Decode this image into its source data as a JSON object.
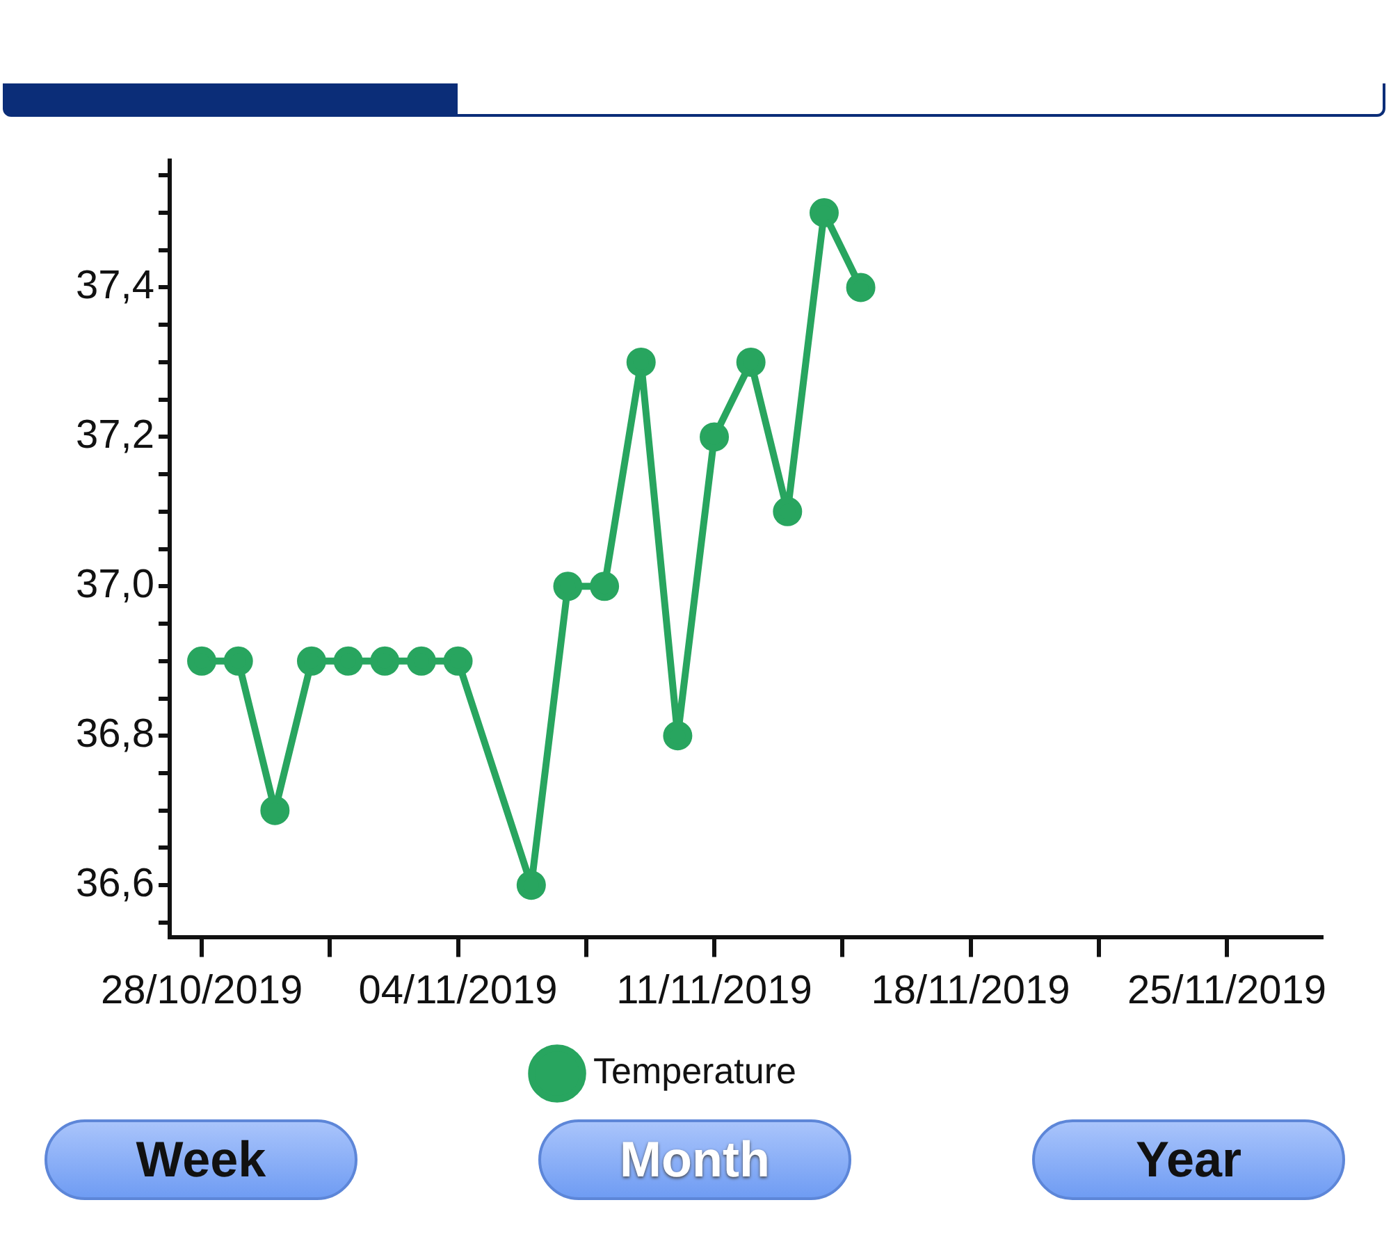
{
  "chart_data": {
    "type": "line",
    "x": [
      "2019-10-28",
      "2019-10-29",
      "2019-10-30",
      "2019-10-31",
      "2019-11-01",
      "2019-11-02",
      "2019-11-03",
      "2019-11-04",
      "2019-11-06",
      "2019-11-07",
      "2019-11-08",
      "2019-11-09",
      "2019-11-10",
      "2019-11-11",
      "2019-11-12",
      "2019-11-13",
      "2019-11-14",
      "2019-11-15"
    ],
    "series": [
      {
        "name": "Temperature",
        "color": "#28a55f",
        "values": [
          36.9,
          36.9,
          36.7,
          36.9,
          36.9,
          36.9,
          36.9,
          36.9,
          36.6,
          37.0,
          37.0,
          37.3,
          36.8,
          37.2,
          37.3,
          37.1,
          37.5,
          37.4
        ]
      }
    ],
    "xlim": [
      "2019-10-27T03:00",
      "2019-11-27T14:00"
    ],
    "xticks": [
      {
        "value": "2019-10-28",
        "label": "28/10/2019"
      },
      {
        "value": "2019-10-31T12:00",
        "label": null
      },
      {
        "value": "2019-11-04",
        "label": "04/11/2019"
      },
      {
        "value": "2019-11-07T12:00",
        "label": null
      },
      {
        "value": "2019-11-11",
        "label": "11/11/2019"
      },
      {
        "value": "2019-11-14T12:00",
        "label": null
      },
      {
        "value": "2019-11-18",
        "label": "18/11/2019"
      },
      {
        "value": "2019-11-21T12:00",
        "label": null
      },
      {
        "value": "2019-11-25",
        "label": "25/11/2019"
      }
    ],
    "ylim": [
      36.53,
      37.57
    ],
    "yticks": [
      {
        "value": 36.55,
        "label": null
      },
      {
        "value": 36.6,
        "label": "36,6"
      },
      {
        "value": 36.65,
        "label": null
      },
      {
        "value": 36.7,
        "label": null
      },
      {
        "value": 36.75,
        "label": null
      },
      {
        "value": 36.8,
        "label": "36,8"
      },
      {
        "value": 36.85,
        "label": null
      },
      {
        "value": 36.9,
        "label": null
      },
      {
        "value": 36.95,
        "label": null
      },
      {
        "value": 37.0,
        "label": "37,0"
      },
      {
        "value": 37.05,
        "label": null
      },
      {
        "value": 37.1,
        "label": null
      },
      {
        "value": 37.15,
        "label": null
      },
      {
        "value": 37.2,
        "label": "37,2"
      },
      {
        "value": 37.25,
        "label": null
      },
      {
        "value": 37.3,
        "label": null
      },
      {
        "value": 37.35,
        "label": null
      },
      {
        "value": 37.4,
        "label": "37,4"
      },
      {
        "value": 37.45,
        "label": null
      },
      {
        "value": 37.5,
        "label": null
      },
      {
        "value": 37.55,
        "label": null
      }
    ],
    "grid": false,
    "legend": "bottom",
    "marker": "circle",
    "line_style": "solid",
    "annotations": [
      "Week",
      "Month",
      "Year"
    ]
  }
}
